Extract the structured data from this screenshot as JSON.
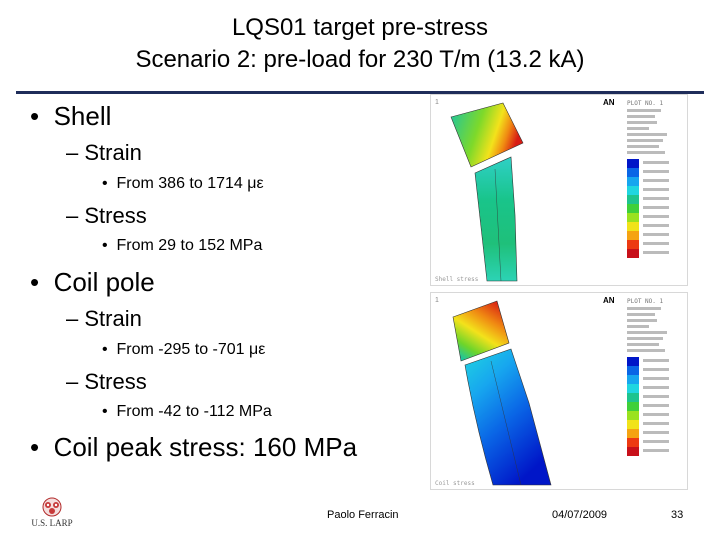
{
  "title": {
    "line1": "LQS01 target pre-stress",
    "line2": "Scenario 2: pre-load for 230 T/m (13.2 kA)"
  },
  "bullets": [
    {
      "level": 1,
      "text": "Shell"
    },
    {
      "level": 2,
      "text": "Strain"
    },
    {
      "level": 3,
      "text": "From 386 to 1714 με"
    },
    {
      "level": 2,
      "text": "Stress"
    },
    {
      "level": 3,
      "text": "From 29 to 152 MPa"
    },
    {
      "level": 1,
      "text": "Coil pole"
    },
    {
      "level": 2,
      "text": "Strain"
    },
    {
      "level": 3,
      "text": "From -295 to -701 με"
    },
    {
      "level": 2,
      "text": "Stress"
    },
    {
      "level": 3,
      "text": "From -42 to -112 MPa"
    },
    {
      "level": 1,
      "text": "Coil peak stress: 160 MPa"
    }
  ],
  "figures": {
    "top": {
      "header": "PLOT NO. 1",
      "logo": "AN",
      "caption": "Shell stress"
    },
    "bottom": {
      "header": "PLOT NO. 1",
      "logo": "AN",
      "caption": "Coil stress"
    }
  },
  "footer": {
    "author": "Paolo Ferracin",
    "date": "04/07/2009",
    "page": "33",
    "logo_text": "U.S. LARP"
  },
  "colors": {
    "rule": "#1f2d5a"
  }
}
